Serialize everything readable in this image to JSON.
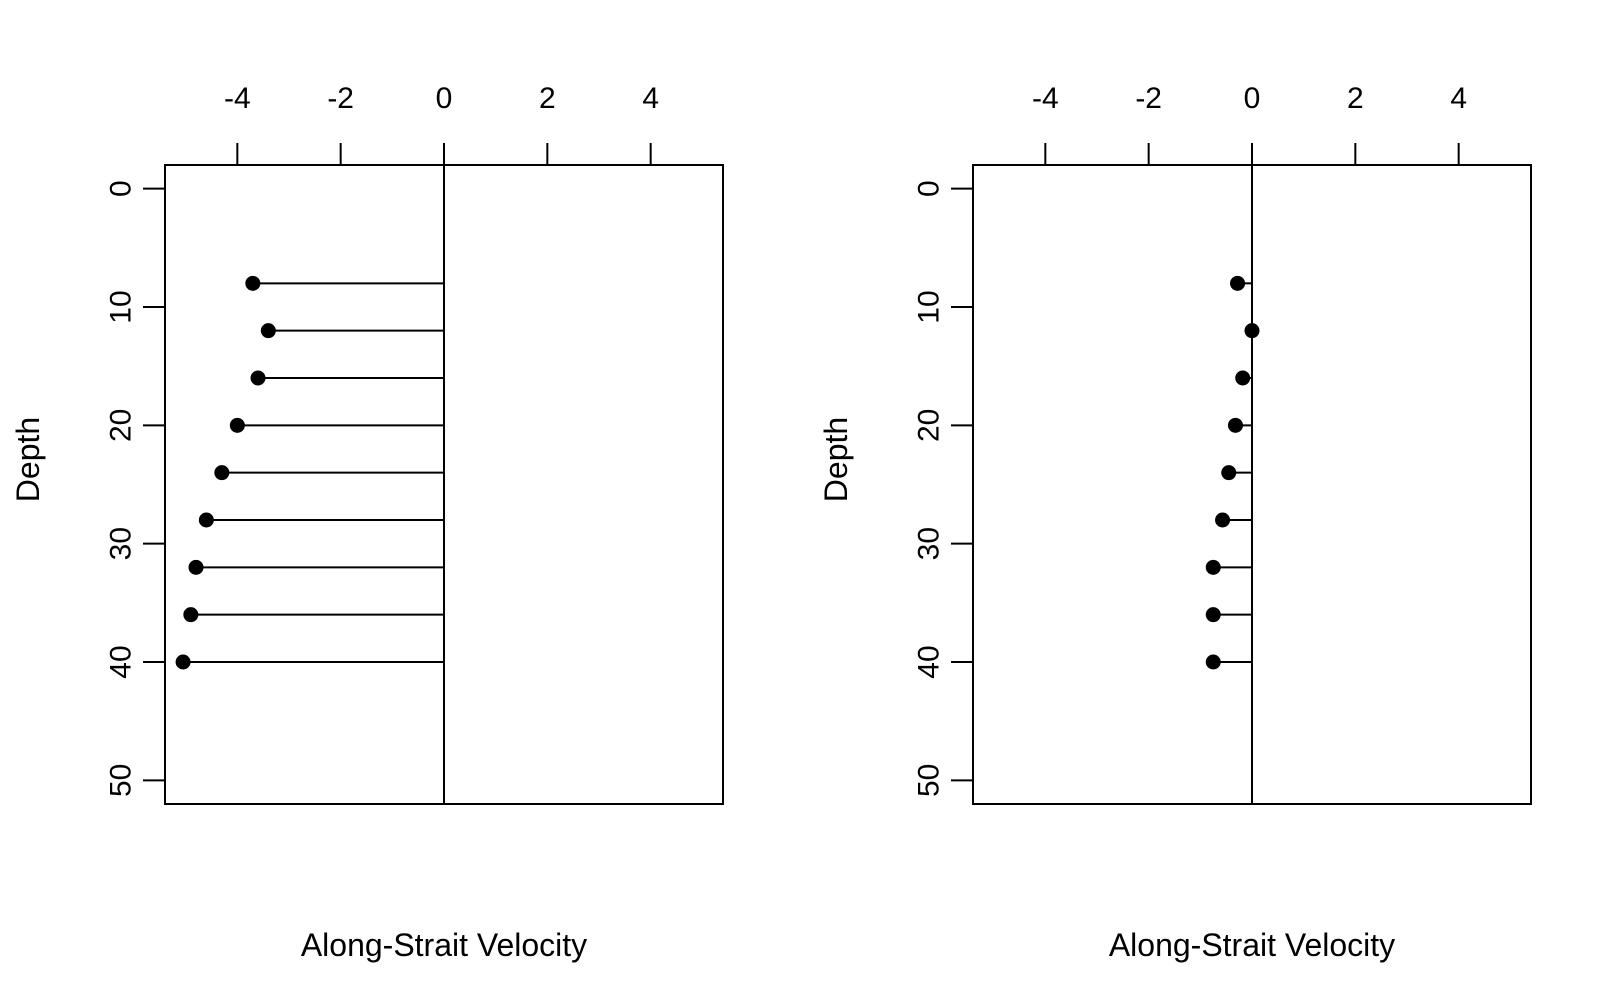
{
  "colors": {
    "foreground": "#000000",
    "background": "#ffffff"
  },
  "chart_data": [
    {
      "type": "scatter",
      "style": "lollipop",
      "orientation": "horizontal-from-zero",
      "title": "",
      "xlabel": "Along-Strait Velocity",
      "ylabel": "Depth",
      "x_axis_position": "top",
      "y_axis_reversed": true,
      "xlim": [
        -5.4,
        5.4
      ],
      "ylim": [
        52,
        -2
      ],
      "xticks": [
        -4,
        -2,
        0,
        2,
        4
      ],
      "yticks": [
        0,
        10,
        20,
        30,
        40,
        50
      ],
      "reference_line_x": 0,
      "grid": false,
      "legend": "none",
      "points": [
        {
          "depth": 8,
          "velocity": -3.7
        },
        {
          "depth": 12,
          "velocity": -3.4
        },
        {
          "depth": 16,
          "velocity": -3.6
        },
        {
          "depth": 20,
          "velocity": -4.0
        },
        {
          "depth": 24,
          "velocity": -4.3
        },
        {
          "depth": 28,
          "velocity": -4.6
        },
        {
          "depth": 32,
          "velocity": -4.8
        },
        {
          "depth": 36,
          "velocity": -4.9
        },
        {
          "depth": 40,
          "velocity": -5.05
        }
      ]
    },
    {
      "type": "scatter",
      "style": "lollipop",
      "orientation": "horizontal-from-zero",
      "title": "",
      "xlabel": "Along-Strait Velocity",
      "ylabel": "Depth",
      "x_axis_position": "top",
      "y_axis_reversed": true,
      "xlim": [
        -5.4,
        5.4
      ],
      "ylim": [
        52,
        -2
      ],
      "xticks": [
        -4,
        -2,
        0,
        2,
        4
      ],
      "yticks": [
        0,
        10,
        20,
        30,
        40,
        50
      ],
      "reference_line_x": 0,
      "grid": false,
      "legend": "none",
      "points": [
        {
          "depth": 8,
          "velocity": -0.28
        },
        {
          "depth": 12,
          "velocity": 0.0
        },
        {
          "depth": 16,
          "velocity": -0.18
        },
        {
          "depth": 20,
          "velocity": -0.32
        },
        {
          "depth": 24,
          "velocity": -0.45
        },
        {
          "depth": 28,
          "velocity": -0.57
        },
        {
          "depth": 32,
          "velocity": -0.75
        },
        {
          "depth": 36,
          "velocity": -0.75
        },
        {
          "depth": 40,
          "velocity": -0.75
        }
      ]
    }
  ]
}
